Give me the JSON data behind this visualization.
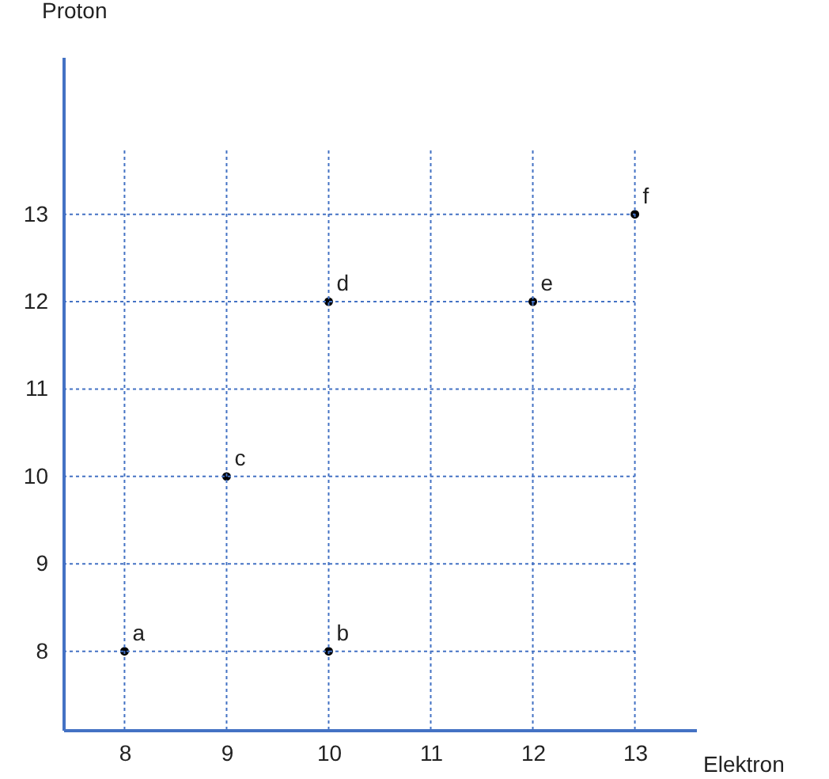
{
  "chart_data": {
    "type": "scatter",
    "xlabel": "Elektron",
    "ylabel": "Proton",
    "x": [
      8,
      10,
      9,
      10,
      12,
      13
    ],
    "series": [
      {
        "color": "#000000",
        "values": [
          8,
          8,
          10,
          12,
          12,
          13
        ]
      }
    ],
    "xlim": [
      7.4,
      13.6
    ],
    "ylim": [
      7.1,
      14.8
    ],
    "xticks": [
      8,
      9,
      10,
      11,
      12,
      13
    ],
    "yticks": [
      8,
      9,
      10,
      11,
      12,
      13
    ],
    "annotations": [
      {
        "text": "a",
        "x": 8,
        "y": 8
      },
      {
        "text": "b",
        "x": 10,
        "y": 8
      },
      {
        "text": "c",
        "x": 9,
        "y": 10
      },
      {
        "text": "d",
        "x": 10,
        "y": 12
      },
      {
        "text": "e",
        "x": 12,
        "y": 12
      },
      {
        "text": "f",
        "x": 13,
        "y": 13
      }
    ],
    "grid": true,
    "marker": "circle"
  }
}
